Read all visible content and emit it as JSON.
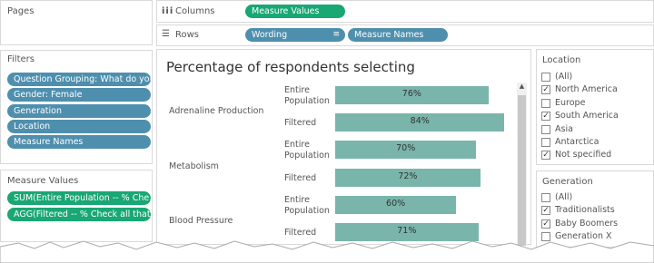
{
  "shelves": {
    "pages_label": "Pages",
    "columns_label": "Columns",
    "columns_pills": [
      "Measure Values"
    ],
    "rows_label": "Rows",
    "rows_pills": [
      "Wording",
      "Measure Names"
    ]
  },
  "filters": {
    "title": "Filters",
    "pills": [
      "Question Grouping: What do you..",
      "Gender: Female",
      "Generation",
      "Location",
      "Measure Names"
    ]
  },
  "measure_values": {
    "title": "Measure Values",
    "pills": [
      "SUM(Entire Population -- % Che..",
      "AGG(Filtered -- % Check all that .."
    ]
  },
  "chart_data": {
    "type": "bar",
    "title": "Percentage of respondents selecting",
    "groups": [
      "Adrenaline Production",
      "Metabolism",
      "Blood Pressure"
    ],
    "categories": [
      "Entire Population",
      "Filtered",
      "Entire Population",
      "Filtered",
      "Entire Population",
      "Filtered"
    ],
    "values": [
      76,
      84,
      70,
      72,
      60,
      71
    ],
    "value_labels": [
      "76%",
      "84%",
      "70%",
      "72%",
      "60%",
      "71%"
    ],
    "color": "#7ab5ab"
  },
  "location": {
    "title": "Location",
    "items": [
      {
        "label": "(All)",
        "checked": false
      },
      {
        "label": "North America",
        "checked": true
      },
      {
        "label": "Europe",
        "checked": false
      },
      {
        "label": "South America",
        "checked": true
      },
      {
        "label": "Asia",
        "checked": false
      },
      {
        "label": "Antarctica",
        "checked": false
      },
      {
        "label": "Not specified",
        "checked": true
      }
    ]
  },
  "generation": {
    "title": "Generation",
    "items": [
      {
        "label": "(All)",
        "checked": false
      },
      {
        "label": "Traditionalists",
        "checked": true
      },
      {
        "label": "Baby Boomers",
        "checked": true
      },
      {
        "label": "Generation X",
        "checked": false
      }
    ]
  }
}
